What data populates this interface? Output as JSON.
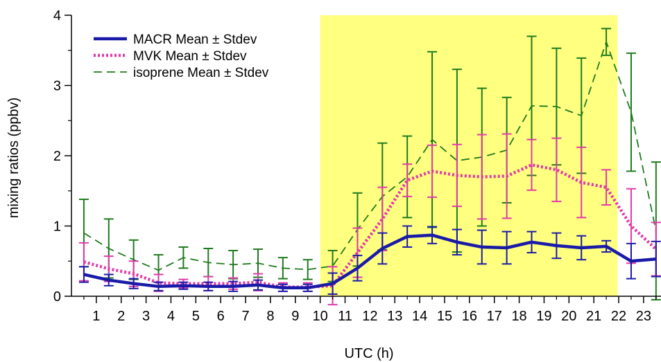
{
  "chart_data": {
    "type": "line",
    "xlabel": "UTC (h)",
    "ylabel": "mixing ratios (ppbv)",
    "x_ticks": [
      1,
      2,
      3,
      4,
      5,
      6,
      7,
      8,
      9,
      10,
      11,
      12,
      13,
      14,
      15,
      16,
      17,
      18,
      19,
      20,
      21,
      22,
      23
    ],
    "y_ticks": [
      0,
      1,
      2,
      3,
      4
    ],
    "xlim": [
      0.0,
      23.7
    ],
    "ylim": [
      0,
      4
    ],
    "highlight_band": {
      "x_start": 10.0,
      "x_end": 21.95,
      "color": "#ffff80"
    },
    "legend_position": "top-left",
    "series": [
      {
        "name": "isoprene Mean ± Stdev",
        "color": "#1e7a1e",
        "line_style": "dashed",
        "x": [
          0.5,
          1.5,
          2.5,
          3.5,
          4.5,
          5.5,
          6.5,
          7.5,
          8.5,
          9.5,
          10.5,
          11.5,
          12.5,
          13.5,
          14.5,
          15.5,
          16.5,
          17.5,
          18.5,
          19.5,
          20.5,
          21.5,
          22.5,
          23.5
        ],
        "mean": [
          0.9,
          0.68,
          0.52,
          0.37,
          0.55,
          0.48,
          0.45,
          0.47,
          0.4,
          0.38,
          0.43,
          0.95,
          1.42,
          1.7,
          2.23,
          1.93,
          1.98,
          2.08,
          2.71,
          2.7,
          2.57,
          3.62,
          2.62,
          0.93
        ],
        "std": [
          0.48,
          0.42,
          0.28,
          0.22,
          0.15,
          0.2,
          0.2,
          0.2,
          0.15,
          0.14,
          0.22,
          0.52,
          0.76,
          0.58,
          1.25,
          1.3,
          0.98,
          0.75,
          0.99,
          0.83,
          0.82,
          0.19,
          0.84,
          0.98
        ]
      },
      {
        "name": "MVK Mean ± Stdev",
        "color": "#e03aa8",
        "line_style": "dotted",
        "x": [
          0.5,
          1.5,
          2.5,
          3.5,
          4.5,
          5.5,
          6.5,
          7.5,
          8.5,
          9.5,
          10.5,
          11.5,
          12.5,
          13.5,
          14.5,
          15.5,
          16.5,
          17.5,
          18.5,
          19.5,
          20.5,
          21.5,
          22.5,
          23.5
        ],
        "mean": [
          0.49,
          0.39,
          0.32,
          0.19,
          0.18,
          0.18,
          0.18,
          0.2,
          0.13,
          0.13,
          0.15,
          0.62,
          1.1,
          1.65,
          1.78,
          1.72,
          1.7,
          1.71,
          1.87,
          1.8,
          1.62,
          1.55,
          1.0,
          0.67
        ],
        "std": [
          0.27,
          0.18,
          0.18,
          0.12,
          0.06,
          0.1,
          0.08,
          0.12,
          0.06,
          0.06,
          0.27,
          0.35,
          0.45,
          0.23,
          0.37,
          0.44,
          0.6,
          0.6,
          0.36,
          0.45,
          0.5,
          0.25,
          0.53,
          0.38
        ]
      },
      {
        "name": "MACR Mean ± Stdev",
        "color": "#1a1aa8",
        "line_style": "solid",
        "x": [
          0.5,
          1.5,
          2.5,
          3.5,
          4.5,
          5.5,
          6.5,
          7.5,
          8.5,
          9.5,
          10.5,
          11.5,
          12.5,
          13.5,
          14.5,
          15.5,
          16.5,
          17.5,
          18.5,
          19.5,
          20.5,
          21.5,
          22.5,
          23.5
        ],
        "mean": [
          0.31,
          0.23,
          0.18,
          0.14,
          0.15,
          0.14,
          0.14,
          0.16,
          0.12,
          0.12,
          0.18,
          0.4,
          0.68,
          0.85,
          0.87,
          0.77,
          0.7,
          0.69,
          0.77,
          0.72,
          0.69,
          0.71,
          0.5,
          0.53
        ],
        "std": [
          0.11,
          0.08,
          0.07,
          0.06,
          0.05,
          0.06,
          0.07,
          0.07,
          0.05,
          0.05,
          0.15,
          0.18,
          0.22,
          0.15,
          0.12,
          0.18,
          0.24,
          0.23,
          0.15,
          0.18,
          0.17,
          0.08,
          0.25,
          0.25
        ]
      }
    ],
    "legend_order": [
      "MACR Mean ± Stdev",
      "MVK Mean ± Stdev",
      "isoprene Mean ± Stdev"
    ]
  }
}
